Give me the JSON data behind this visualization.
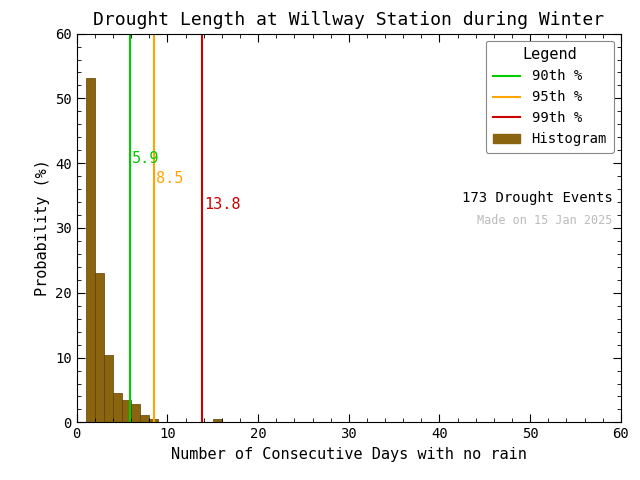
{
  "title": "Drought Length at Willway Station during Winter",
  "xlabel": "Number of Consecutive Days with no rain",
  "ylabel": "Probability (%)",
  "xlim": [
    0,
    60
  ],
  "ylim": [
    0,
    60
  ],
  "xticks": [
    0,
    10,
    20,
    30,
    40,
    50,
    60
  ],
  "yticks": [
    0,
    10,
    20,
    30,
    40,
    50,
    60
  ],
  "bar_color": "#8B6410",
  "bar_edge_color": "#5C4000",
  "bar_heights": [
    53.2,
    23.1,
    10.4,
    4.6,
    3.5,
    2.9,
    1.2,
    0.6,
    0.0,
    0.0,
    0.0,
    0.0,
    0.0,
    0.0,
    0.6
  ],
  "bar_bins": [
    1,
    2,
    3,
    4,
    5,
    6,
    7,
    8,
    9,
    10,
    11,
    12,
    13,
    14,
    15
  ],
  "percentile_90_val": 5.9,
  "percentile_95_val": 8.5,
  "percentile_99_val": 13.8,
  "percentile_90_line_color": "#00CC00",
  "percentile_95_line_color": "#FFA500",
  "percentile_99_line_color": "#CC0000",
  "percentile_90_text_color": "#00CC00",
  "percentile_95_text_color": "#FFA500",
  "percentile_99_text_color": "#CC0000",
  "legend_title": "Legend",
  "legend_90_label": "90th %",
  "legend_95_label": "95th %",
  "legend_99_label": "99th %",
  "legend_hist_label": "Histogram",
  "drought_events_label": "173 Drought Events",
  "watermark": "Made on 15 Jan 2025",
  "watermark_color": "#BBBBBB",
  "background_color": "#FFFFFF",
  "title_fontsize": 13,
  "axis_fontsize": 11,
  "tick_fontsize": 10,
  "annotation_fontsize": 11,
  "legend_fontsize": 10,
  "legend_title_fontsize": 11
}
